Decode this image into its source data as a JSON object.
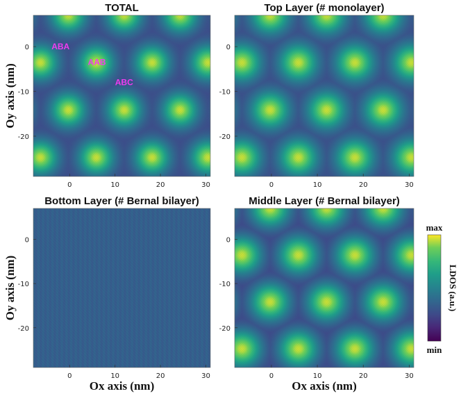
{
  "chart_data": {
    "type": "heatmap",
    "panels": [
      {
        "title": "TOTAL",
        "pattern": "total",
        "annotations": [
          {
            "text": "ABA",
            "x": -2,
            "y": 0
          },
          {
            "text": "AAB",
            "x": 6,
            "y": -3.5
          },
          {
            "text": "ABC",
            "x": 12,
            "y": -8
          }
        ]
      },
      {
        "title": "Top Layer (# monolayer)",
        "pattern": "top",
        "annotations": []
      },
      {
        "title": "Bottom Layer (# Bernal bilayer)",
        "pattern": "flat",
        "annotations": []
      },
      {
        "title": "Middle Layer (# Bernal bilayer)",
        "pattern": "middle",
        "annotations": []
      }
    ],
    "xlabel": "Ox axis (nm)",
    "ylabel": "Oy axis (nm)",
    "xlim": [
      -8,
      31
    ],
    "ylim": [
      -29,
      7
    ],
    "xticks": [
      "0",
      "10",
      "20",
      "30"
    ],
    "yticks": [
      "0",
      "-10",
      "-20"
    ],
    "colorbar": {
      "label": "LDOS (a.u.)",
      "max_label": "max",
      "min_label": "min",
      "colormap": "viridis"
    }
  }
}
